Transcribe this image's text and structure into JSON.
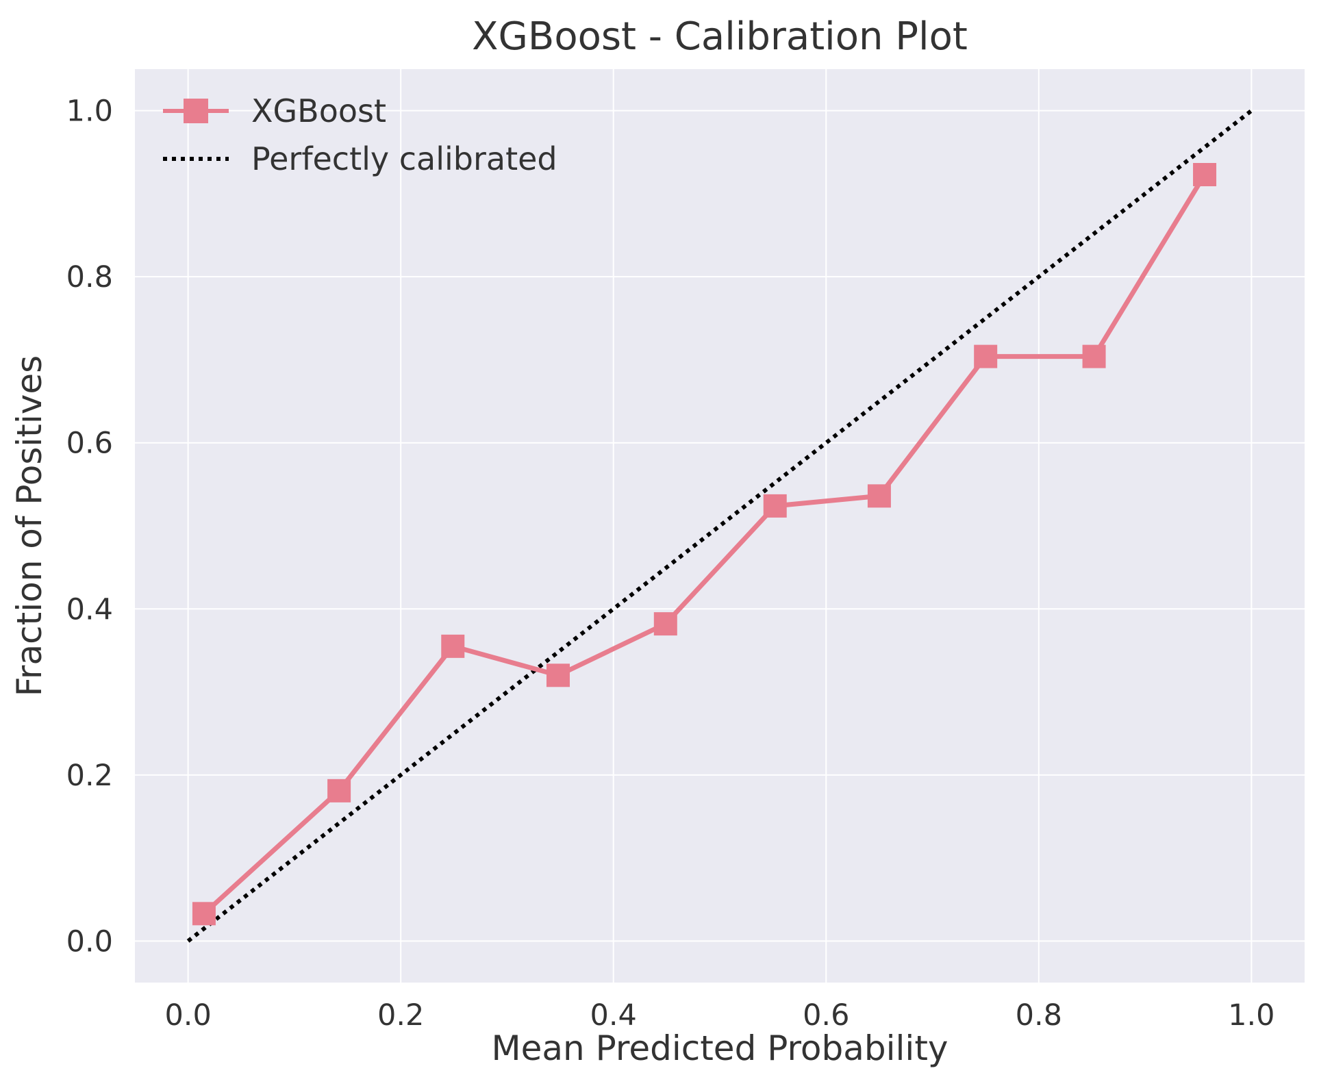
{
  "chart_data": {
    "type": "line",
    "title": "XGBoost - Calibration Plot",
    "xlabel": "Mean Predicted Probability",
    "ylabel": "Fraction of Positives",
    "xlim": [
      -0.05,
      1.05
    ],
    "ylim": [
      -0.05,
      1.05
    ],
    "xticks": [
      0.0,
      0.2,
      0.4,
      0.6,
      0.8,
      1.0
    ],
    "yticks": [
      0.0,
      0.2,
      0.4,
      0.6,
      0.8,
      1.0
    ],
    "xtick_labels": [
      "0.0",
      "0.2",
      "0.4",
      "0.6",
      "0.8",
      "1.0"
    ],
    "ytick_labels": [
      "0.0",
      "0.2",
      "0.4",
      "0.6",
      "0.8",
      "1.0"
    ],
    "grid": true,
    "legend_position": "top-left",
    "series": [
      {
        "name": "XGBoost",
        "style": "solid",
        "marker": "square",
        "color": "#e87d8e",
        "x": [
          0.015,
          0.142,
          0.249,
          0.348,
          0.449,
          0.552,
          0.65,
          0.75,
          0.852,
          0.956
        ],
        "y": [
          0.033,
          0.181,
          0.355,
          0.32,
          0.382,
          0.524,
          0.536,
          0.704,
          0.704,
          0.923
        ]
      },
      {
        "name": "Perfectly calibrated",
        "style": "dotted",
        "color": "#000000",
        "x": [
          0.0,
          1.0
        ],
        "y": [
          0.0,
          1.0
        ]
      }
    ],
    "colors": {
      "plot_background": "#eaeaf2",
      "grid": "#ffffff"
    }
  }
}
